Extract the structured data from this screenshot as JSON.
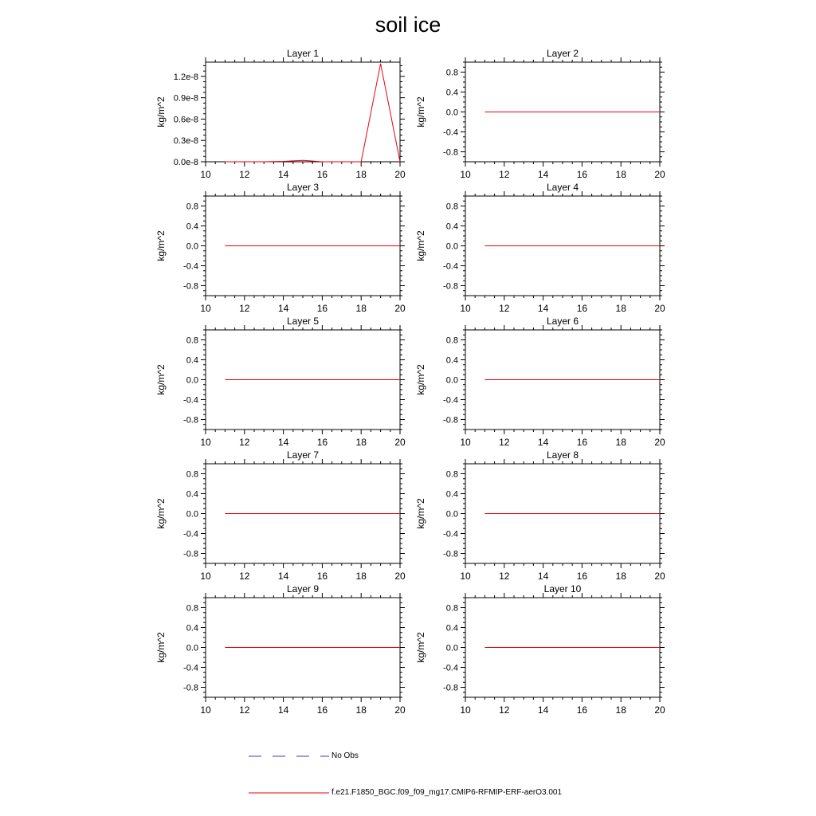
{
  "title": "soil ice",
  "colors": {
    "model": "#e8000b",
    "obs": "#3c3cc8",
    "axis": "#000000"
  },
  "legend": {
    "obs_label": "No Obs",
    "model_label": "f.e21.F1850_BGC.f09_f09_mg17.CMIP6-RFMIP-ERF-aerO3.001"
  },
  "chart_data": [
    {
      "type": "line",
      "title": "Layer 1",
      "ylabel": "kg/m^2",
      "xlim": [
        10,
        20
      ],
      "ylim": [
        0,
        1.4e-08
      ],
      "xticks": [
        10,
        12,
        14,
        16,
        18,
        20
      ],
      "yticks": [
        0,
        3e-09,
        6e-09,
        9e-09,
        1.2e-08
      ],
      "ytick_labels": [
        "0.0e-8",
        "0.3e-8",
        "0.6e-8",
        "0.9e-8",
        "1.2e-8"
      ],
      "series": [
        {
          "x": [
            11,
            12,
            13,
            14,
            15,
            16,
            17,
            18,
            19,
            20
          ],
          "values": [
            0,
            0,
            0,
            5e-11,
            2e-10,
            0,
            0,
            0,
            1.38e-08,
            0
          ]
        }
      ]
    },
    {
      "type": "line",
      "title": "Layer 2",
      "ylabel": "kg/m^2",
      "xlim": [
        10,
        20
      ],
      "ylim": [
        -1,
        1
      ],
      "xticks": [
        10,
        12,
        14,
        16,
        18,
        20
      ],
      "yticks": [
        -0.8,
        -0.4,
        0,
        0.4,
        0.8
      ],
      "ytick_labels": [
        "-0.8",
        "-0.4",
        "0.0",
        "0.4",
        "0.8"
      ],
      "series": [
        {
          "x": [
            11,
            12,
            13,
            14,
            15,
            16,
            17,
            18,
            19,
            20
          ],
          "values": [
            0,
            0,
            0,
            0,
            0,
            0,
            0,
            0,
            0,
            0
          ]
        }
      ]
    },
    {
      "type": "line",
      "title": "Layer 3",
      "ylabel": "kg/m^2",
      "xlim": [
        10,
        20
      ],
      "ylim": [
        -1,
        1
      ],
      "xticks": [
        10,
        12,
        14,
        16,
        18,
        20
      ],
      "yticks": [
        -0.8,
        -0.4,
        0,
        0.4,
        0.8
      ],
      "ytick_labels": [
        "-0.8",
        "-0.4",
        "0.0",
        "0.4",
        "0.8"
      ],
      "series": [
        {
          "x": [
            11,
            12,
            13,
            14,
            15,
            16,
            17,
            18,
            19,
            20
          ],
          "values": [
            0,
            0,
            0,
            0,
            0,
            0,
            0,
            0,
            0,
            0
          ]
        }
      ]
    },
    {
      "type": "line",
      "title": "Layer 4",
      "ylabel": "kg/m^2",
      "xlim": [
        10,
        20
      ],
      "ylim": [
        -1,
        1
      ],
      "xticks": [
        10,
        12,
        14,
        16,
        18,
        20
      ],
      "yticks": [
        -0.8,
        -0.4,
        0,
        0.4,
        0.8
      ],
      "ytick_labels": [
        "-0.8",
        "-0.4",
        "0.0",
        "0.4",
        "0.8"
      ],
      "series": [
        {
          "x": [
            11,
            12,
            13,
            14,
            15,
            16,
            17,
            18,
            19,
            20
          ],
          "values": [
            0,
            0,
            0,
            0,
            0,
            0,
            0,
            0,
            0,
            0
          ]
        }
      ]
    },
    {
      "type": "line",
      "title": "Layer 5",
      "ylabel": "kg/m^2",
      "xlim": [
        10,
        20
      ],
      "ylim": [
        -1,
        1
      ],
      "xticks": [
        10,
        12,
        14,
        16,
        18,
        20
      ],
      "yticks": [
        -0.8,
        -0.4,
        0,
        0.4,
        0.8
      ],
      "ytick_labels": [
        "-0.8",
        "-0.4",
        "0.0",
        "0.4",
        "0.8"
      ],
      "series": [
        {
          "x": [
            11,
            12,
            13,
            14,
            15,
            16,
            17,
            18,
            19,
            20
          ],
          "values": [
            0,
            0,
            0,
            0,
            0,
            0,
            0,
            0,
            0,
            0
          ]
        }
      ]
    },
    {
      "type": "line",
      "title": "Layer 6",
      "ylabel": "kg/m^2",
      "xlim": [
        10,
        20
      ],
      "ylim": [
        -1,
        1
      ],
      "xticks": [
        10,
        12,
        14,
        16,
        18,
        20
      ],
      "yticks": [
        -0.8,
        -0.4,
        0,
        0.4,
        0.8
      ],
      "ytick_labels": [
        "-0.8",
        "-0.4",
        "0.0",
        "0.4",
        "0.8"
      ],
      "series": [
        {
          "x": [
            11,
            12,
            13,
            14,
            15,
            16,
            17,
            18,
            19,
            20
          ],
          "values": [
            0,
            0,
            0,
            0,
            0,
            0,
            0,
            0,
            0,
            0
          ]
        }
      ]
    },
    {
      "type": "line",
      "title": "Layer 7",
      "ylabel": "kg/m^2",
      "xlim": [
        10,
        20
      ],
      "ylim": [
        -1,
        1
      ],
      "xticks": [
        10,
        12,
        14,
        16,
        18,
        20
      ],
      "yticks": [
        -0.8,
        -0.4,
        0,
        0.4,
        0.8
      ],
      "ytick_labels": [
        "-0.8",
        "-0.4",
        "0.0",
        "0.4",
        "0.8"
      ],
      "series": [
        {
          "x": [
            11,
            12,
            13,
            14,
            15,
            16,
            17,
            18,
            19,
            20
          ],
          "values": [
            0,
            0,
            0,
            0,
            0,
            0,
            0,
            0,
            0,
            0
          ]
        }
      ]
    },
    {
      "type": "line",
      "title": "Layer 8",
      "ylabel": "kg/m^2",
      "xlim": [
        10,
        20
      ],
      "ylim": [
        -1,
        1
      ],
      "xticks": [
        10,
        12,
        14,
        16,
        18,
        20
      ],
      "yticks": [
        -0.8,
        -0.4,
        0,
        0.4,
        0.8
      ],
      "ytick_labels": [
        "-0.8",
        "-0.4",
        "0.0",
        "0.4",
        "0.8"
      ],
      "series": [
        {
          "x": [
            11,
            12,
            13,
            14,
            15,
            16,
            17,
            18,
            19,
            20
          ],
          "values": [
            0,
            0,
            0,
            0,
            0,
            0,
            0,
            0,
            0,
            0
          ]
        }
      ]
    },
    {
      "type": "line",
      "title": "Layer 9",
      "ylabel": "kg/m^2",
      "xlim": [
        10,
        20
      ],
      "ylim": [
        -1,
        1
      ],
      "xticks": [
        10,
        12,
        14,
        16,
        18,
        20
      ],
      "yticks": [
        -0.8,
        -0.4,
        0,
        0.4,
        0.8
      ],
      "ytick_labels": [
        "-0.8",
        "-0.4",
        "0.0",
        "0.4",
        "0.8"
      ],
      "series": [
        {
          "x": [
            11,
            12,
            13,
            14,
            15,
            16,
            17,
            18,
            19,
            20
          ],
          "values": [
            0,
            0,
            0,
            0,
            0,
            0,
            0,
            0,
            0,
            0
          ]
        }
      ]
    },
    {
      "type": "line",
      "title": "Layer 10",
      "ylabel": "kg/m^2",
      "xlim": [
        10,
        20
      ],
      "ylim": [
        -1,
        1
      ],
      "xticks": [
        10,
        12,
        14,
        16,
        18,
        20
      ],
      "yticks": [
        -0.8,
        -0.4,
        0,
        0.4,
        0.8
      ],
      "ytick_labels": [
        "-0.8",
        "-0.4",
        "0.0",
        "0.4",
        "0.8"
      ],
      "series": [
        {
          "x": [
            11,
            12,
            13,
            14,
            15,
            16,
            17,
            18,
            19,
            20
          ],
          "values": [
            0,
            0,
            0,
            0,
            0,
            0,
            0,
            0,
            0,
            0
          ]
        }
      ]
    }
  ]
}
